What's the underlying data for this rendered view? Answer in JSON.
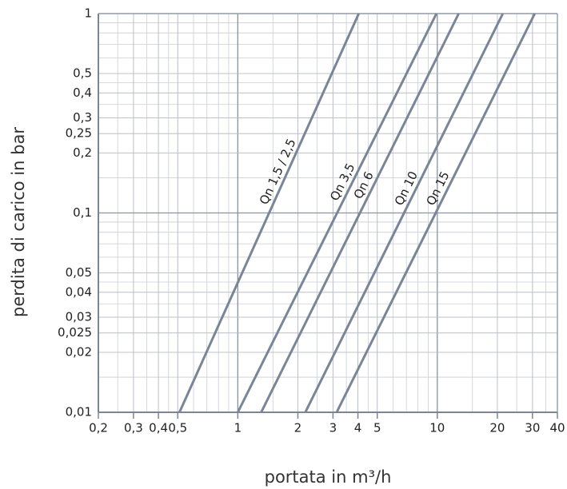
{
  "chart_data": {
    "type": "line",
    "x_label": "portata in m³/h",
    "y_label": "perdita di carico in bar",
    "xlog": true,
    "ylog": true,
    "grid": true,
    "minor_grid": true,
    "color": "#7b8597",
    "xlim": [
      0.2,
      40
    ],
    "ylim": [
      0.01,
      1
    ],
    "xticks": [
      {
        "value": 0.2,
        "label": "0,2"
      },
      {
        "value": 0.3,
        "label": "0,3"
      },
      {
        "value": 0.4,
        "label": "0,4"
      },
      {
        "value": 0.5,
        "label": "0,5"
      },
      1,
      2,
      3,
      4,
      5,
      10,
      20,
      30,
      40
    ],
    "yticks": [
      {
        "value": 0.01,
        "label": "0,01"
      },
      {
        "value": 0.02,
        "label": "0,02"
      },
      {
        "value": 0.025,
        "label": "0,025"
      },
      {
        "value": 0.03,
        "label": "0,03"
      },
      {
        "value": 0.04,
        "label": "0,04"
      },
      {
        "value": 0.05,
        "label": "0,05"
      },
      {
        "value": 0.1,
        "label": "0,1"
      },
      {
        "value": 0.2,
        "label": "0,2"
      },
      {
        "value": 0.25,
        "label": "0,25"
      },
      {
        "value": 0.3,
        "label": "0,3"
      },
      {
        "value": 0.4,
        "label": "0,4"
      },
      {
        "value": 0.5,
        "label": "0,5"
      },
      1
    ],
    "series": [
      {
        "name": "Qn 1,5 / 2,5",
        "x": [
          0.51,
          4.04
        ],
        "values": [
          0.01,
          1
        ]
      },
      {
        "name": "Qn 3,5",
        "x": [
          1,
          9.9
        ],
        "values": [
          0.01,
          1
        ]
      },
      {
        "name": "Qn 6",
        "x": [
          1.31,
          12.8
        ],
        "values": [
          0.01,
          1
        ]
      },
      {
        "name": "Qn 10",
        "x": [
          2.18,
          21.3
        ],
        "values": [
          0.01,
          1
        ]
      },
      {
        "name": "Qn 15",
        "x": [
          3.13,
          30.8
        ],
        "values": [
          0.01,
          1
        ]
      }
    ]
  }
}
